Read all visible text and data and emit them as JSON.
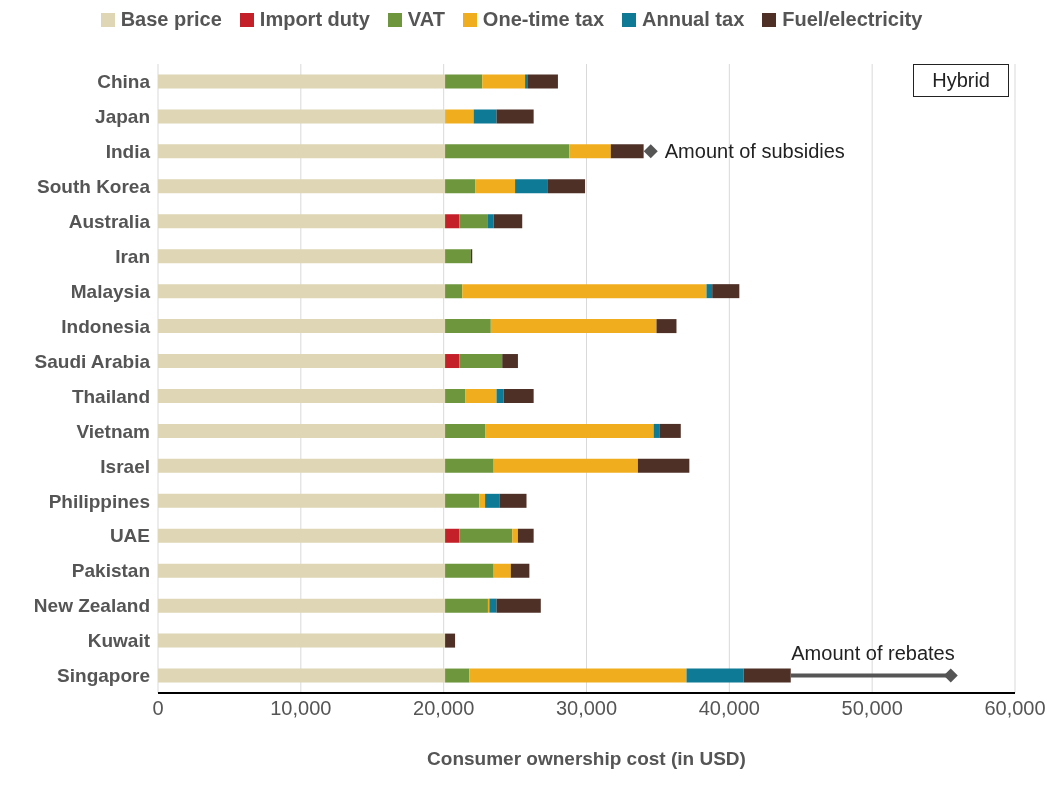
{
  "chart_data": {
    "type": "bar",
    "orientation": "horizontal",
    "stacked": true,
    "title": "Hybrid",
    "xlabel": "Consumer ownership cost (in USD)",
    "categories": [
      "China",
      "Japan",
      "India",
      "South Korea",
      "Australia",
      "Iran",
      "Malaysia",
      "Indonesia",
      "Saudi Arabia",
      "Thailand",
      "Vietnam",
      "Israel",
      "Philippines",
      "UAE",
      "Pakistan",
      "New Zealand",
      "Kuwait",
      "Singapore"
    ],
    "series": [
      {
        "name": "Base price",
        "color": "#ded6b5",
        "values": [
          20100,
          20100,
          20100,
          20100,
          20100,
          20100,
          20100,
          20100,
          20100,
          20100,
          20100,
          20100,
          20100,
          20100,
          20100,
          20100,
          20100,
          20100
        ]
      },
      {
        "name": "Import duty",
        "color": "#c4202a",
        "values": [
          0,
          0,
          0,
          0,
          1000,
          0,
          0,
          0,
          1000,
          0,
          0,
          0,
          0,
          1000,
          0,
          0,
          0,
          0
        ]
      },
      {
        "name": "VAT",
        "color": "#6e963d",
        "values": [
          2600,
          0,
          8700,
          2100,
          2000,
          1800,
          1200,
          3200,
          3000,
          1400,
          2800,
          3400,
          2400,
          3700,
          3400,
          3000,
          0,
          1700
        ]
      },
      {
        "name": "One-time tax",
        "color": "#f0ae1e",
        "values": [
          3000,
          2000,
          2900,
          2800,
          0,
          0,
          17100,
          11600,
          0,
          2200,
          11800,
          10100,
          400,
          400,
          1200,
          100,
          0,
          15200
        ]
      },
      {
        "name": "Annual tax",
        "color": "#0e7a96",
        "values": [
          200,
          1600,
          0,
          2300,
          400,
          0,
          400,
          0,
          0,
          500,
          400,
          0,
          1000,
          0,
          0,
          500,
          0,
          4000
        ]
      },
      {
        "name": "Fuel/electricity",
        "color": "#4e3027",
        "values": [
          2100,
          2600,
          2300,
          2600,
          2000,
          100,
          1900,
          1400,
          1100,
          2100,
          1500,
          3600,
          1900,
          1100,
          1300,
          3100,
          700,
          3300
        ]
      }
    ],
    "xlim": [
      0,
      60000
    ],
    "xticks": [
      0,
      {
        "value": 10000,
        "label": "10,000"
      },
      {
        "value": 20000,
        "label": "20,000"
      },
      {
        "value": 30000,
        "label": "30,000"
      },
      {
        "value": 40000,
        "label": "40,000"
      },
      {
        "value": 50000,
        "label": "50,000"
      },
      {
        "value": 60000,
        "label": "60,000"
      }
    ],
    "grid": "x",
    "legend": "top",
    "annotations": [
      {
        "text": "Amount of subsidies",
        "x": 34500,
        "y": "India"
      },
      {
        "text": "Amount of rebates",
        "x": 55500,
        "y": "Singapore"
      }
    ]
  }
}
